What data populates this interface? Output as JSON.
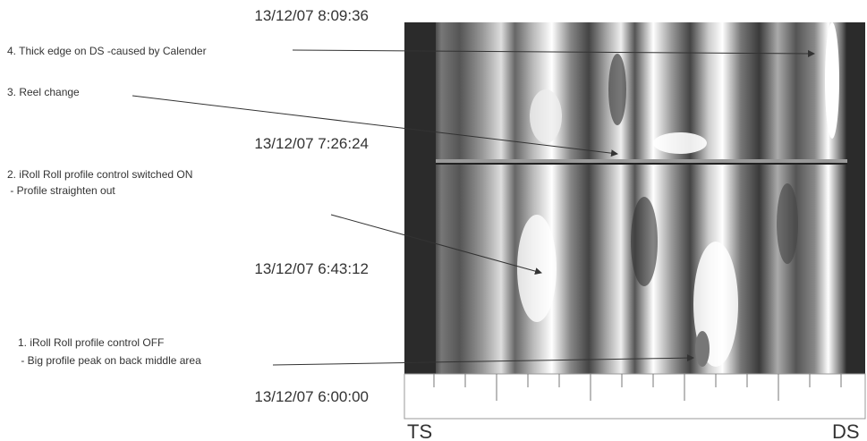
{
  "timestamps": [
    "13/12/07 8:09:36",
    "13/12/07 7:26:24",
    "13/12/07 6:43:12",
    "13/12/07 6:00:00"
  ],
  "annotations": [
    {
      "lines": [
        "4. Thick edge on DS -caused by Calender"
      ]
    },
    {
      "lines": [
        "3. Reel change"
      ]
    },
    {
      "lines": [
        "2. iRoll Roll profile control switched ON",
        " - Profile straighten out"
      ]
    },
    {
      "lines": [
        "1. iRoll Roll profile control OFF",
        " - Big profile peak on back middle area"
      ]
    }
  ],
  "axis": {
    "left": "TS",
    "right": "DS"
  }
}
